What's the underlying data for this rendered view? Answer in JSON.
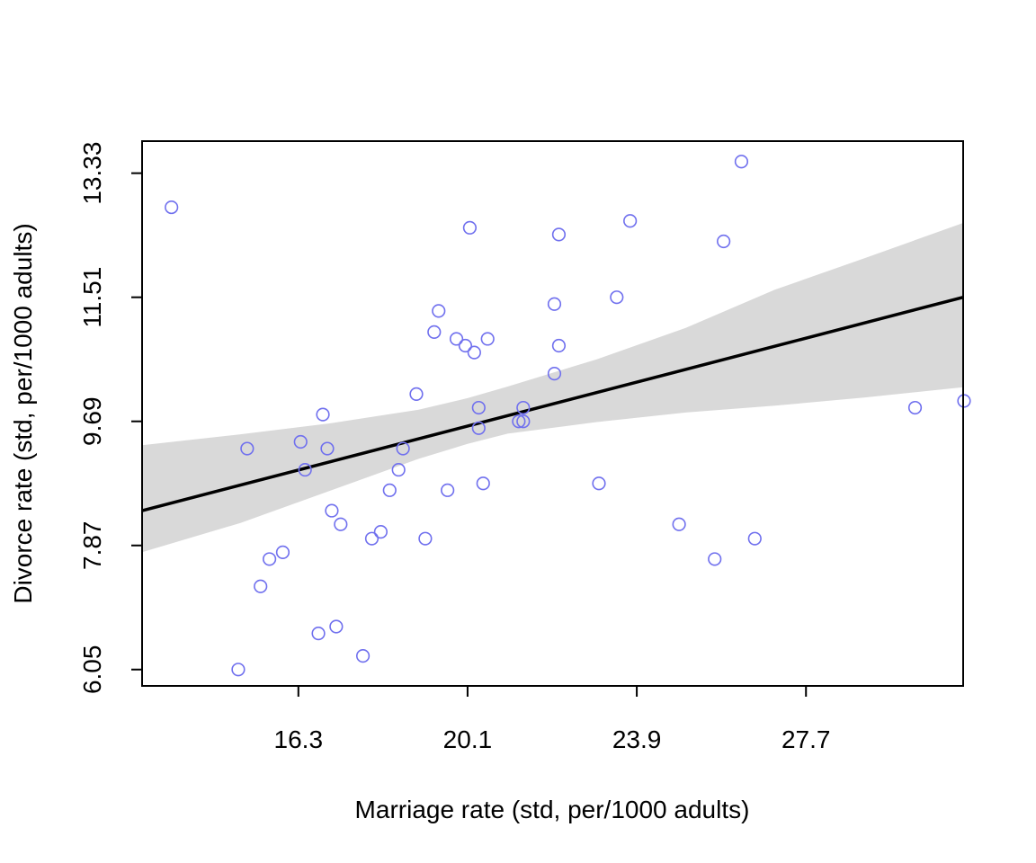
{
  "chart_data": {
    "type": "scatter",
    "title": "",
    "xlabel": "Marriage rate (std, per/1000 adults)",
    "ylabel": "Divorce rate (std, per/1000 adults)",
    "xlim": [
      12.79,
      31.23
    ],
    "ylim": [
      5.81,
      13.8
    ],
    "xticks": [
      16.3,
      20.1,
      23.9,
      27.7
    ],
    "xtick_labels": [
      "16.3",
      "20.1",
      "23.9",
      "27.7"
    ],
    "yticks": [
      6.05,
      7.87,
      9.69,
      11.51,
      13.33
    ],
    "ytick_labels": [
      "6.05",
      "7.87",
      "9.69",
      "11.51",
      "13.33"
    ],
    "grid": false,
    "point_color": "#7070ee",
    "line_color": "#000000",
    "band_color": "#d9d9d9",
    "points": [
      {
        "x": 13.45,
        "y": 12.83
      },
      {
        "x": 14.95,
        "y": 6.05
      },
      {
        "x": 15.15,
        "y": 9.29
      },
      {
        "x": 15.45,
        "y": 7.27
      },
      {
        "x": 15.65,
        "y": 7.67
      },
      {
        "x": 15.95,
        "y": 7.77
      },
      {
        "x": 16.35,
        "y": 9.39
      },
      {
        "x": 16.45,
        "y": 8.98
      },
      {
        "x": 16.75,
        "y": 6.58
      },
      {
        "x": 16.85,
        "y": 9.79
      },
      {
        "x": 16.95,
        "y": 9.29
      },
      {
        "x": 17.05,
        "y": 8.38
      },
      {
        "x": 17.15,
        "y": 6.68
      },
      {
        "x": 17.25,
        "y": 8.18
      },
      {
        "x": 17.75,
        "y": 6.25
      },
      {
        "x": 17.95,
        "y": 7.97
      },
      {
        "x": 18.15,
        "y": 8.07
      },
      {
        "x": 18.35,
        "y": 8.68
      },
      {
        "x": 18.55,
        "y": 8.98
      },
      {
        "x": 18.65,
        "y": 9.29
      },
      {
        "x": 18.95,
        "y": 10.09
      },
      {
        "x": 19.15,
        "y": 7.97
      },
      {
        "x": 19.35,
        "y": 11.0
      },
      {
        "x": 19.45,
        "y": 11.31
      },
      {
        "x": 19.65,
        "y": 8.68
      },
      {
        "x": 19.85,
        "y": 10.9
      },
      {
        "x": 20.05,
        "y": 10.8
      },
      {
        "x": 20.15,
        "y": 12.53
      },
      {
        "x": 20.25,
        "y": 10.7
      },
      {
        "x": 20.35,
        "y": 9.59
      },
      {
        "x": 20.35,
        "y": 9.89
      },
      {
        "x": 20.45,
        "y": 8.78
      },
      {
        "x": 20.55,
        "y": 10.9
      },
      {
        "x": 21.25,
        "y": 9.69
      },
      {
        "x": 21.35,
        "y": 9.69
      },
      {
        "x": 21.35,
        "y": 9.89
      },
      {
        "x": 22.05,
        "y": 11.41
      },
      {
        "x": 22.05,
        "y": 10.39
      },
      {
        "x": 22.15,
        "y": 10.8
      },
      {
        "x": 22.15,
        "y": 12.43
      },
      {
        "x": 23.05,
        "y": 8.78
      },
      {
        "x": 23.45,
        "y": 11.51
      },
      {
        "x": 23.75,
        "y": 12.63
      },
      {
        "x": 24.85,
        "y": 8.18
      },
      {
        "x": 25.65,
        "y": 7.67
      },
      {
        "x": 25.85,
        "y": 12.33
      },
      {
        "x": 26.25,
        "y": 13.5
      },
      {
        "x": 26.55,
        "y": 7.97
      },
      {
        "x": 30.15,
        "y": 9.89
      },
      {
        "x": 31.25,
        "y": 9.99
      }
    ],
    "regression_line": {
      "x": [
        12.79,
        31.23
      ],
      "y": [
        8.38,
        11.51
      ]
    },
    "confidence_band": {
      "x": [
        12.79,
        15.0,
        17.0,
        19.0,
        20.1,
        21.0,
        23.0,
        25.0,
        27.0,
        29.0,
        31.23
      ],
      "lower": [
        7.77,
        8.2,
        8.67,
        9.14,
        9.36,
        9.51,
        9.68,
        9.82,
        9.92,
        10.04,
        10.19
      ],
      "upper": [
        9.34,
        9.5,
        9.66,
        9.86,
        10.03,
        10.2,
        10.6,
        11.06,
        11.62,
        12.08,
        12.6
      ]
    }
  }
}
